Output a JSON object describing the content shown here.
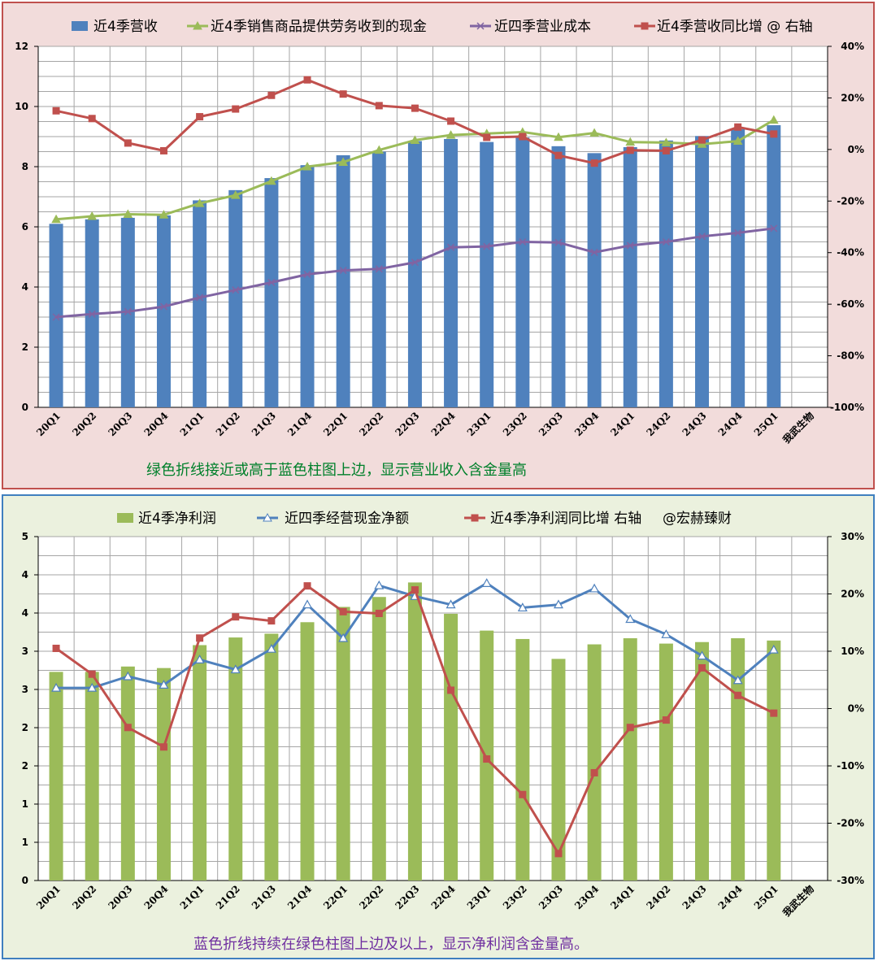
{
  "chart_data": [
    {
      "type": "bar",
      "categories": [
        "20Q1",
        "20Q2",
        "20Q3",
        "20Q4",
        "21Q1",
        "21Q2",
        "21Q3",
        "21Q4",
        "22Q1",
        "22Q2",
        "22Q3",
        "22Q4",
        "23Q1",
        "23Q2",
        "23Q3",
        "23Q4",
        "24Q1",
        "24Q2",
        "24Q3",
        "24Q4",
        "25Q1"
      ],
      "extra_category_label": "我武生物",
      "series": [
        {
          "name": "近4季营收",
          "kind": "bar",
          "axis": "left",
          "color": "#4f81bd",
          "values": [
            6.1,
            6.25,
            6.3,
            6.38,
            6.88,
            7.22,
            7.62,
            8.05,
            8.38,
            8.5,
            8.85,
            8.92,
            8.82,
            8.97,
            8.68,
            8.45,
            8.65,
            8.87,
            9.02,
            9.25,
            9.38
          ]
        },
        {
          "name": "近4季销售商品提供劳务收到的现金",
          "kind": "line",
          "marker": "triangle",
          "axis": "left",
          "color": "#9bbb59",
          "values": [
            6.25,
            6.35,
            6.42,
            6.4,
            6.78,
            7.05,
            7.52,
            8.0,
            8.15,
            8.55,
            8.88,
            9.05,
            9.1,
            9.15,
            8.98,
            9.12,
            8.82,
            8.8,
            8.75,
            8.85,
            9.55
          ]
        },
        {
          "name": "近四季营业成本",
          "kind": "line",
          "marker": "x",
          "axis": "left",
          "color": "#8064a2",
          "values": [
            3.0,
            3.1,
            3.18,
            3.35,
            3.65,
            3.9,
            4.15,
            4.42,
            4.55,
            4.6,
            4.82,
            5.32,
            5.35,
            5.5,
            5.48,
            5.15,
            5.38,
            5.5,
            5.68,
            5.8,
            5.95
          ]
        },
        {
          "name": "近4季营收同比增 @ 右轴",
          "kind": "line",
          "marker": "square",
          "axis": "right",
          "color": "#c0504d",
          "values": [
            15,
            12,
            2.5,
            -0.5,
            12.7,
            15.7,
            21,
            27,
            21.5,
            17,
            16,
            11,
            4.7,
            5,
            -2.3,
            -5.3,
            -0.3,
            -0.5,
            3.7,
            8.7,
            6
          ]
        }
      ],
      "yleft": {
        "lim": [
          0,
          12
        ],
        "ticks": [
          "0",
          "2",
          "4",
          "6",
          "8",
          "10",
          "12"
        ]
      },
      "yright": {
        "lim": [
          -100,
          40
        ],
        "ticks": [
          "-100%",
          "-80%",
          "-60%",
          "-40%",
          "-20%",
          "0%",
          "20%",
          "40%"
        ]
      },
      "caption": "绿色折线接近或高于蓝色柱图上边，显示营业收入含金量高",
      "caption_color": "#00802b",
      "grid": true,
      "legend_position": "top"
    },
    {
      "type": "bar",
      "categories": [
        "20Q1",
        "20Q2",
        "20Q3",
        "20Q4",
        "21Q1",
        "21Q2",
        "21Q3",
        "21Q4",
        "22Q1",
        "22Q2",
        "22Q3",
        "22Q4",
        "23Q1",
        "23Q2",
        "23Q3",
        "23Q4",
        "24Q1",
        "24Q2",
        "24Q3",
        "24Q4",
        "25Q1"
      ],
      "extra_category_label": "我武生物",
      "series": [
        {
          "name": "近4季净利润",
          "kind": "bar",
          "axis": "left",
          "color": "#9bbb59",
          "values": [
            2.73,
            2.73,
            2.8,
            2.78,
            3.08,
            3.18,
            3.23,
            3.38,
            3.58,
            3.71,
            3.9,
            3.49,
            3.27,
            3.16,
            2.9,
            3.09,
            3.17,
            3.1,
            3.12,
            3.17,
            3.14
          ]
        },
        {
          "name": "近四季经营现金净额",
          "kind": "line",
          "marker": "triangle",
          "axis": "left",
          "color": "#4f81bd",
          "values": [
            2.52,
            2.52,
            2.67,
            2.56,
            2.89,
            2.76,
            3.03,
            3.61,
            3.17,
            3.86,
            3.72,
            3.61,
            3.89,
            3.57,
            3.61,
            3.82,
            3.42,
            3.22,
            2.94,
            2.62,
            3.02
          ]
        },
        {
          "name": "近4季净利润同比增 右轴",
          "kind": "line",
          "marker": "square",
          "axis": "right",
          "color": "#c0504d",
          "values": [
            10.5,
            6,
            -3.3,
            -6.7,
            12.3,
            16,
            15.3,
            21.4,
            16.9,
            16.6,
            20.7,
            3.2,
            -8.8,
            -15,
            -25.3,
            -11.2,
            -3.3,
            -2,
            7.1,
            2.3,
            -0.8
          ]
        }
      ],
      "watermark_label": "@宏赫臻财",
      "yleft": {
        "lim": [
          0,
          4.5
        ],
        "ticks": [
          "0",
          "1",
          "1",
          "2",
          "2",
          "3",
          "3",
          "4",
          "4",
          "5"
        ]
      },
      "yright": {
        "lim": [
          -30,
          30
        ],
        "ticks": [
          "-30%",
          "-20%",
          "-10%",
          "0%",
          "10%",
          "20%",
          "30%"
        ]
      },
      "caption": "蓝色折线持续在绿色柱图上边及以上，显示净利润含金量高。",
      "caption_color": "#7030a0",
      "grid": true,
      "legend_position": "top"
    }
  ]
}
